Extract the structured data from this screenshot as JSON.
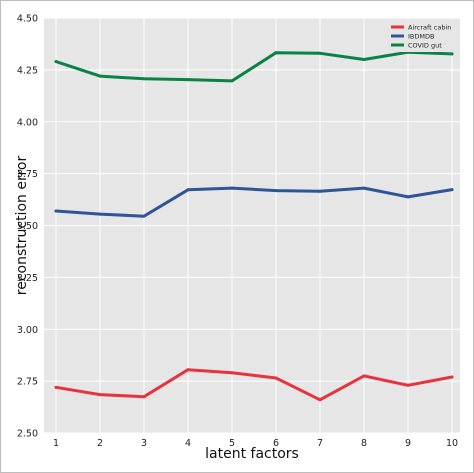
{
  "chart_data": {
    "type": "line",
    "title": "",
    "xlabel": "latent factors",
    "ylabel": "reconstruction error",
    "x": [
      1,
      2,
      3,
      4,
      5,
      6,
      7,
      8,
      9,
      10
    ],
    "xlim": [
      1,
      10
    ],
    "ylim": [
      2.5,
      4.5
    ],
    "yticks": [
      "2.50",
      "2.75",
      "3.00",
      "3.25",
      "3.50",
      "3.75",
      "4.00",
      "4.25",
      "4.50"
    ],
    "xticks": [
      "1",
      "2",
      "3",
      "4",
      "5",
      "6",
      "7",
      "8",
      "9",
      "10"
    ],
    "grid": true,
    "legend_position": "top-right",
    "series": [
      {
        "name": "Aircraft cabin",
        "color": "#e8333f",
        "values": [
          2.72,
          2.685,
          2.675,
          2.805,
          2.79,
          2.765,
          2.66,
          2.775,
          2.73,
          2.77
        ]
      },
      {
        "name": "IBDMDB",
        "color": "#2f5597",
        "values": [
          3.57,
          3.555,
          3.545,
          3.672,
          3.68,
          3.668,
          3.665,
          3.68,
          3.638,
          3.673
        ]
      },
      {
        "name": "COVID gut",
        "color": "#0a8245",
        "values": [
          4.29,
          4.22,
          4.207,
          4.203,
          4.197,
          4.333,
          4.33,
          4.3,
          4.335,
          4.327
        ]
      }
    ]
  }
}
